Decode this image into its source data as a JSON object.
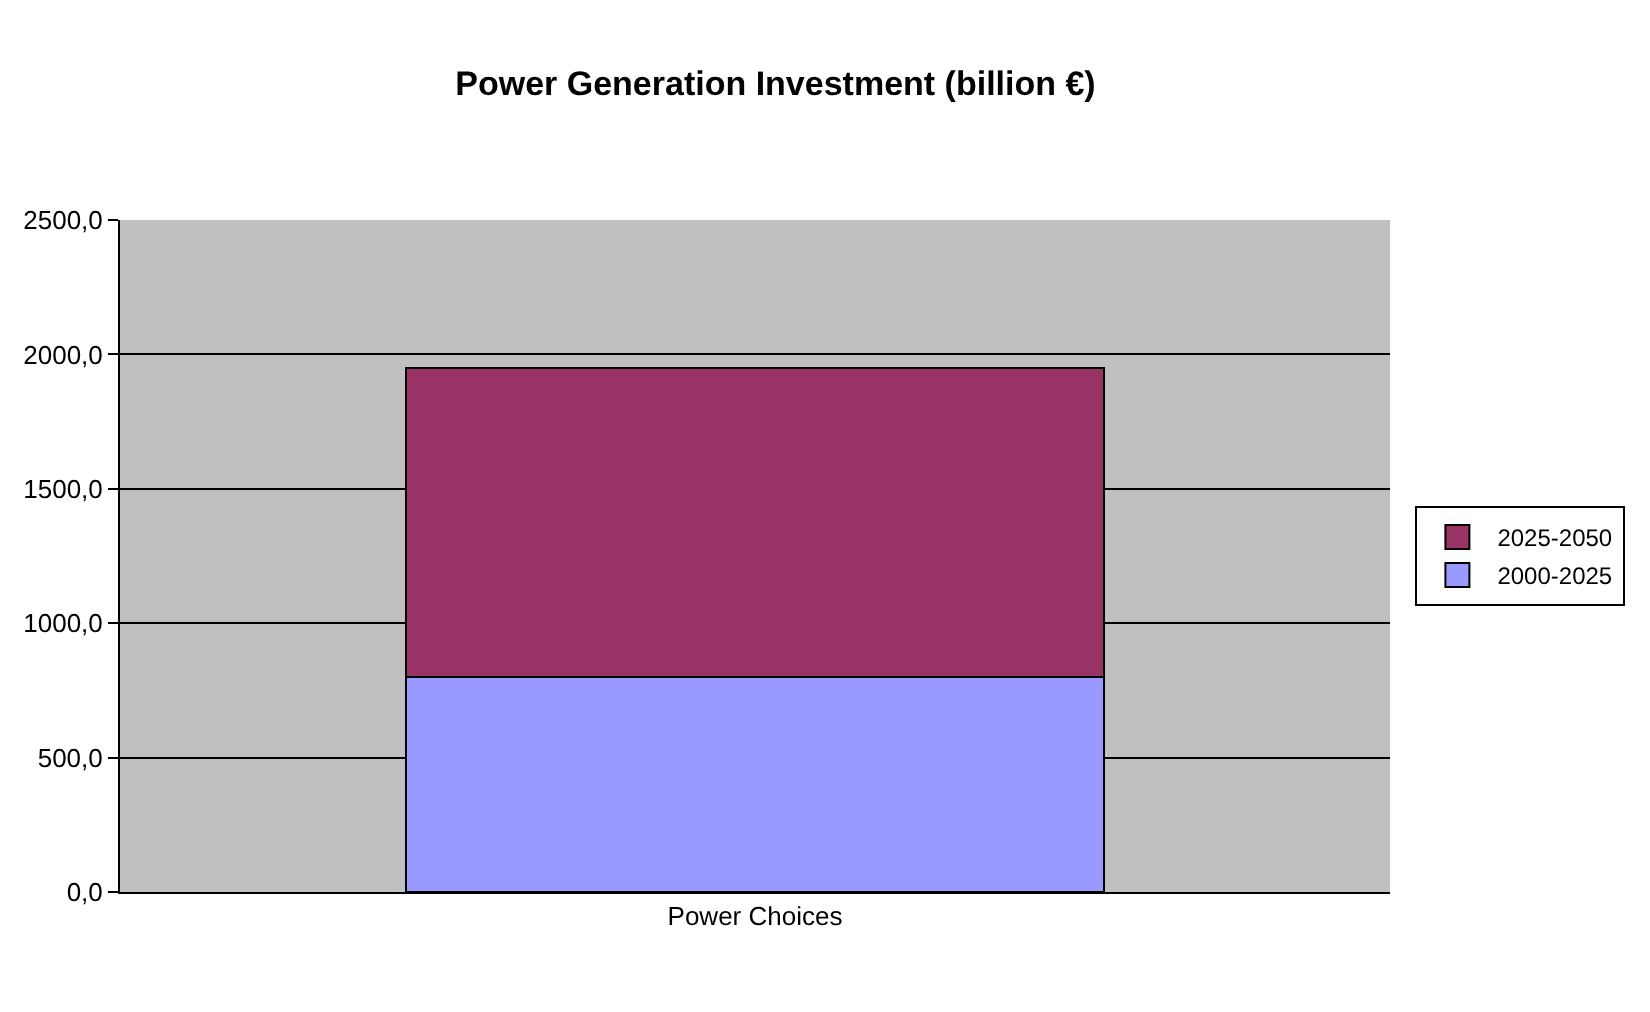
{
  "chart_data": {
    "type": "bar",
    "stacked": true,
    "title": "Power Generation Investment (billion €)",
    "categories": [
      "Power Choices"
    ],
    "series": [
      {
        "name": "2000-2025",
        "color": "#9999ff",
        "values": [
          800
        ]
      },
      {
        "name": "2025-2050",
        "color": "#993366",
        "values": [
          1150
        ]
      }
    ],
    "ylim": [
      0,
      2500
    ],
    "yticks": [
      {
        "value": 0,
        "label": "0,0"
      },
      {
        "value": 500,
        "label": "500,0"
      },
      {
        "value": 1000,
        "label": "1000,0"
      },
      {
        "value": 1500,
        "label": "1500,0"
      },
      {
        "value": 2000,
        "label": "2000,0"
      },
      {
        "value": 2500,
        "label": "2500,0"
      }
    ],
    "grid": "y",
    "legend": "right"
  }
}
